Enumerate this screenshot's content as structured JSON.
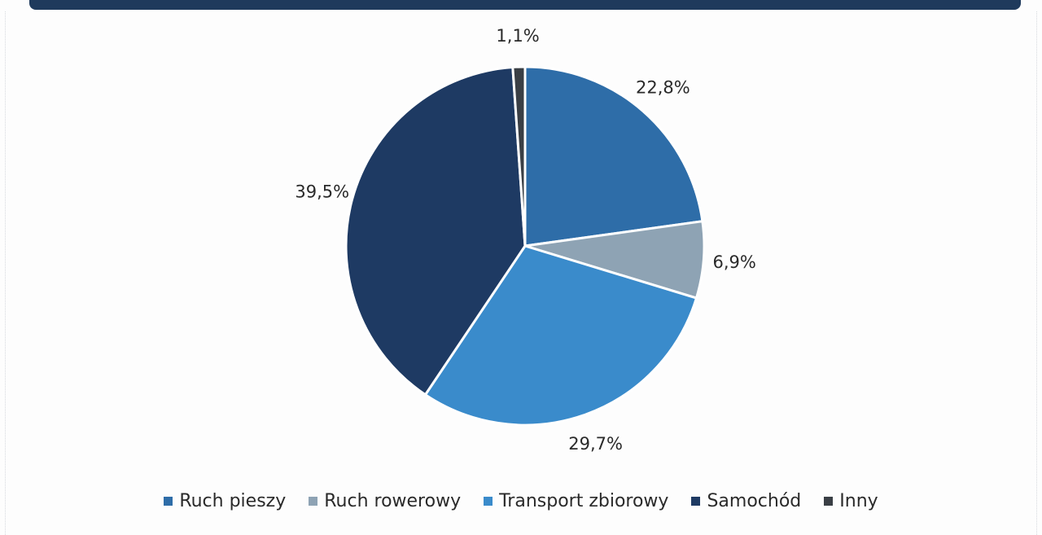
{
  "chart_data": {
    "type": "pie",
    "categories": [
      "Ruch pieszy",
      "Ruch rowerowy",
      "Transport zbiorowy",
      "Samochód",
      "Inny"
    ],
    "values": [
      22.8,
      6.9,
      29.7,
      39.5,
      1.1
    ],
    "labels": [
      "22,8%",
      "6,9%",
      "29,7%",
      "39,5%",
      "1,1%"
    ],
    "colors": [
      "#2e6da8",
      "#8ea3b4",
      "#3a8bcb",
      "#1e3a63",
      "#3a3f45"
    ],
    "legend_position": "bottom",
    "start_angle": "top, clockwise"
  },
  "legend": {
    "items": [
      {
        "label": "Ruch pieszy",
        "color": "#2e6da8"
      },
      {
        "label": "Ruch rowerowy",
        "color": "#8ea3b4"
      },
      {
        "label": "Transport zbiorowy",
        "color": "#3a8bcb"
      },
      {
        "label": "Samochód",
        "color": "#1e3a63"
      },
      {
        "label": "Inny",
        "color": "#3a3f45"
      }
    ]
  }
}
